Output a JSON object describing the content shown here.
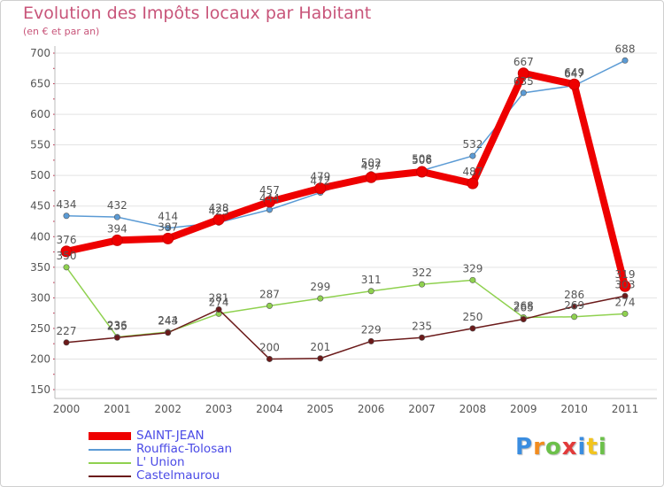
{
  "chart_data": {
    "type": "line",
    "title": "Evolution des Impôts locaux par Habitant",
    "subtitle": "(en € et par an)",
    "xlabel": "",
    "ylabel": "",
    "ylim": [
      150,
      700
    ],
    "yticks": [
      150,
      200,
      250,
      300,
      350,
      400,
      450,
      500,
      550,
      600,
      650,
      700
    ],
    "categories": [
      "2000",
      "2001",
      "2002",
      "2003",
      "2004",
      "2005",
      "2006",
      "2007",
      "2008",
      "2009",
      "2010",
      "2011"
    ],
    "grid": "horizontal",
    "legend_position": "bottom-left",
    "series": [
      {
        "name": "Rouffiac-Tolosan",
        "color": "#5b9bd5",
        "values": [
          434,
          432,
          414,
          423,
          444,
          472,
          502,
          508,
          532,
          635,
          647,
          688
        ]
      },
      {
        "name": "L'Union",
        "color": "#8fd14f",
        "values": [
          350,
          236,
          244,
          274,
          287,
          299,
          311,
          322,
          329,
          268,
          269,
          274
        ]
      },
      {
        "name": "Castelmaurou",
        "color": "#6b1a1a",
        "values": [
          227,
          235,
          243,
          281,
          200,
          201,
          229,
          235,
          250,
          265,
          286,
          303
        ]
      },
      {
        "name": "SAINT-JEAN",
        "color": "#ee0000",
        "values": [
          376,
          394,
          397,
          428,
          457,
          479,
          497,
          506,
          487,
          667,
          649,
          319
        ]
      }
    ]
  },
  "legend": {
    "items": [
      {
        "label": "SAINT-JEAN",
        "color": "#ee0000"
      },
      {
        "label": "Rouffiac-Tolosan",
        "color": "#5b9bd5"
      },
      {
        "label": "L' Union",
        "color": "#8fd14f"
      },
      {
        "label": "Castelmaurou",
        "color": "#6b1a1a"
      }
    ]
  },
  "logo": {
    "letters": [
      "P",
      "r",
      "o",
      "x",
      "i",
      "t",
      "i"
    ],
    "colors": [
      "#3a8de0",
      "#f28c1e",
      "#6cc04a",
      "#e23a3a",
      "#3a8de0",
      "#f2c41e",
      "#6cc04a"
    ]
  }
}
